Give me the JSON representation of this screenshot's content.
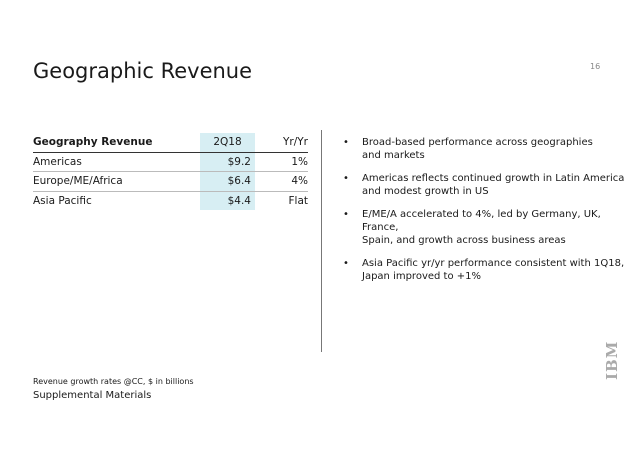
{
  "header": {
    "title": "Geographic Revenue",
    "page_number": "16"
  },
  "table": {
    "columns": [
      "Geography Revenue",
      "2Q18",
      "Yr/Yr"
    ],
    "rows": [
      [
        "Americas",
        "$9.2",
        "1%"
      ],
      [
        "Europe/ME/Africa",
        "$6.4",
        "4%"
      ],
      [
        "Asia Pacific",
        "$4.4",
        "Flat"
      ]
    ]
  },
  "bullets": [
    [
      "Broad-based performance across geographies",
      "and markets"
    ],
    [
      "Americas reflects continued growth in Latin America",
      "and modest growth in US"
    ],
    [
      "E/ME/A accelerated to 4%, led by Germany, UK, France,",
      "Spain, and growth across business areas"
    ],
    [
      "Asia Pacific yr/yr performance consistent with 1Q18,",
      "Japan improved to +1%"
    ]
  ],
  "footnote": "Revenue growth rates @CC, $ in billions",
  "footer": "Supplemental Materials",
  "logo": "IBM"
}
